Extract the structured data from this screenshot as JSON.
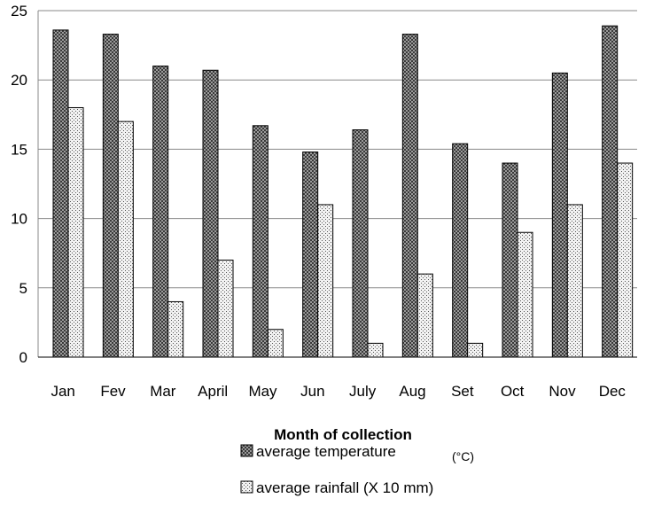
{
  "chart_data": {
    "type": "bar",
    "title": "",
    "xlabel": "Month of collection",
    "ylabel": "",
    "ylim": [
      0,
      25
    ],
    "yticks": [
      0,
      5,
      10,
      15,
      20,
      25
    ],
    "grid": true,
    "legend_position": "bottom",
    "categories": [
      "Jan",
      "Fev",
      "Mar",
      "April",
      "May",
      "Jun",
      "July",
      "Aug",
      "Set",
      "Oct",
      "Nov",
      "Dec"
    ],
    "series": [
      {
        "name": "average temperature",
        "name_suffix": "(°C)",
        "pattern": "dark-checker",
        "values": [
          23.6,
          23.3,
          21.0,
          20.7,
          16.7,
          14.8,
          16.4,
          23.3,
          15.4,
          14.0,
          20.5,
          23.9
        ]
      },
      {
        "name": "average rainfall (X 10 mm)",
        "name_suffix": "",
        "pattern": "light-dots",
        "values": [
          18,
          17,
          4,
          7,
          2,
          11,
          1,
          6,
          1,
          9,
          11,
          14
        ]
      }
    ]
  }
}
